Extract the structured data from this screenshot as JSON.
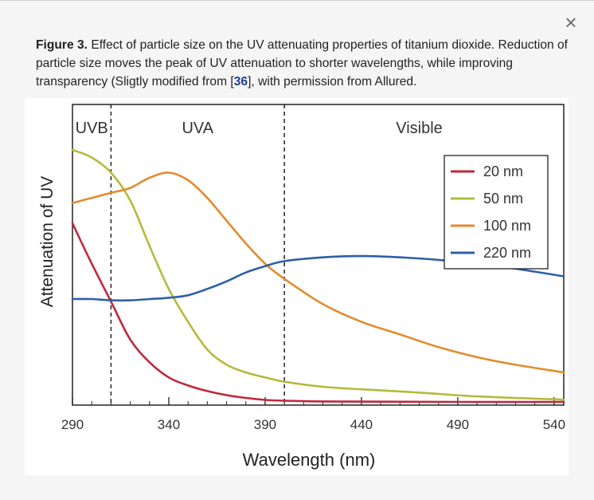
{
  "caption": {
    "label": "Figure 3.",
    "text_before": " Effect of particle size on the UV attenuating properties of titanium dioxide. Reduction of particle size moves the peak of UV attenuation to shorter wavelengths, while improving transparency (Sligtly modified from [",
    "ref": "36",
    "text_after": "], with permission from Allured."
  },
  "close_icon": "×",
  "chart_data": {
    "type": "line",
    "title": "",
    "xlabel": "Wavelength (nm)",
    "ylabel": "Attenuation of UV",
    "xlim": [
      290,
      545
    ],
    "ylim": [
      0,
      1
    ],
    "xticks": [
      290,
      340,
      390,
      440,
      490,
      540
    ],
    "xtick_labels": [
      "290",
      "340",
      "390",
      "440",
      "490",
      "540"
    ],
    "grid": false,
    "legend_position": "top-right",
    "regions": [
      {
        "label": "UVB",
        "x_center": 300
      },
      {
        "label": "UVA",
        "x_center": 355
      },
      {
        "label": "Visible",
        "x_center": 470
      }
    ],
    "boundaries": [
      310,
      400
    ],
    "series": [
      {
        "name": "20 nm",
        "color": "#c0273d",
        "x": [
          290,
          300,
          310,
          320,
          330,
          340,
          350,
          360,
          370,
          380,
          390,
          400,
          420,
          450,
          490,
          545
        ],
        "y": [
          0.71,
          0.55,
          0.4,
          0.25,
          0.16,
          0.1,
          0.068,
          0.046,
          0.03,
          0.019,
          0.011,
          0.008,
          0.005,
          0.004,
          0.003,
          0.003
        ]
      },
      {
        "name": "50 nm",
        "color": "#b5ba3c",
        "x": [
          290,
          300,
          310,
          320,
          330,
          340,
          350,
          360,
          370,
          380,
          390,
          400,
          420,
          440,
          470,
          500,
          545
        ],
        "y": [
          1.0,
          0.97,
          0.91,
          0.8,
          0.62,
          0.45,
          0.32,
          0.21,
          0.15,
          0.12,
          0.1,
          0.083,
          0.063,
          0.053,
          0.04,
          0.025,
          0.012
        ]
      },
      {
        "name": "100 nm",
        "color": "#e38b2d",
        "x": [
          290,
          300,
          310,
          320,
          330,
          340,
          350,
          360,
          370,
          380,
          390,
          400,
          420,
          440,
          460,
          480,
          500,
          520,
          545
        ],
        "y": [
          0.79,
          0.81,
          0.83,
          0.85,
          0.89,
          0.91,
          0.88,
          0.81,
          0.72,
          0.63,
          0.55,
          0.49,
          0.39,
          0.32,
          0.27,
          0.22,
          0.18,
          0.15,
          0.12
        ]
      },
      {
        "name": "220 nm",
        "color": "#2e5fa8",
        "x": [
          290,
          300,
          310,
          320,
          330,
          340,
          350,
          360,
          370,
          380,
          390,
          400,
          420,
          440,
          460,
          480,
          500,
          520,
          545
        ],
        "y": [
          0.41,
          0.41,
          0.405,
          0.405,
          0.41,
          0.415,
          0.425,
          0.45,
          0.48,
          0.515,
          0.54,
          0.56,
          0.575,
          0.58,
          0.575,
          0.565,
          0.55,
          0.53,
          0.5
        ]
      }
    ]
  }
}
